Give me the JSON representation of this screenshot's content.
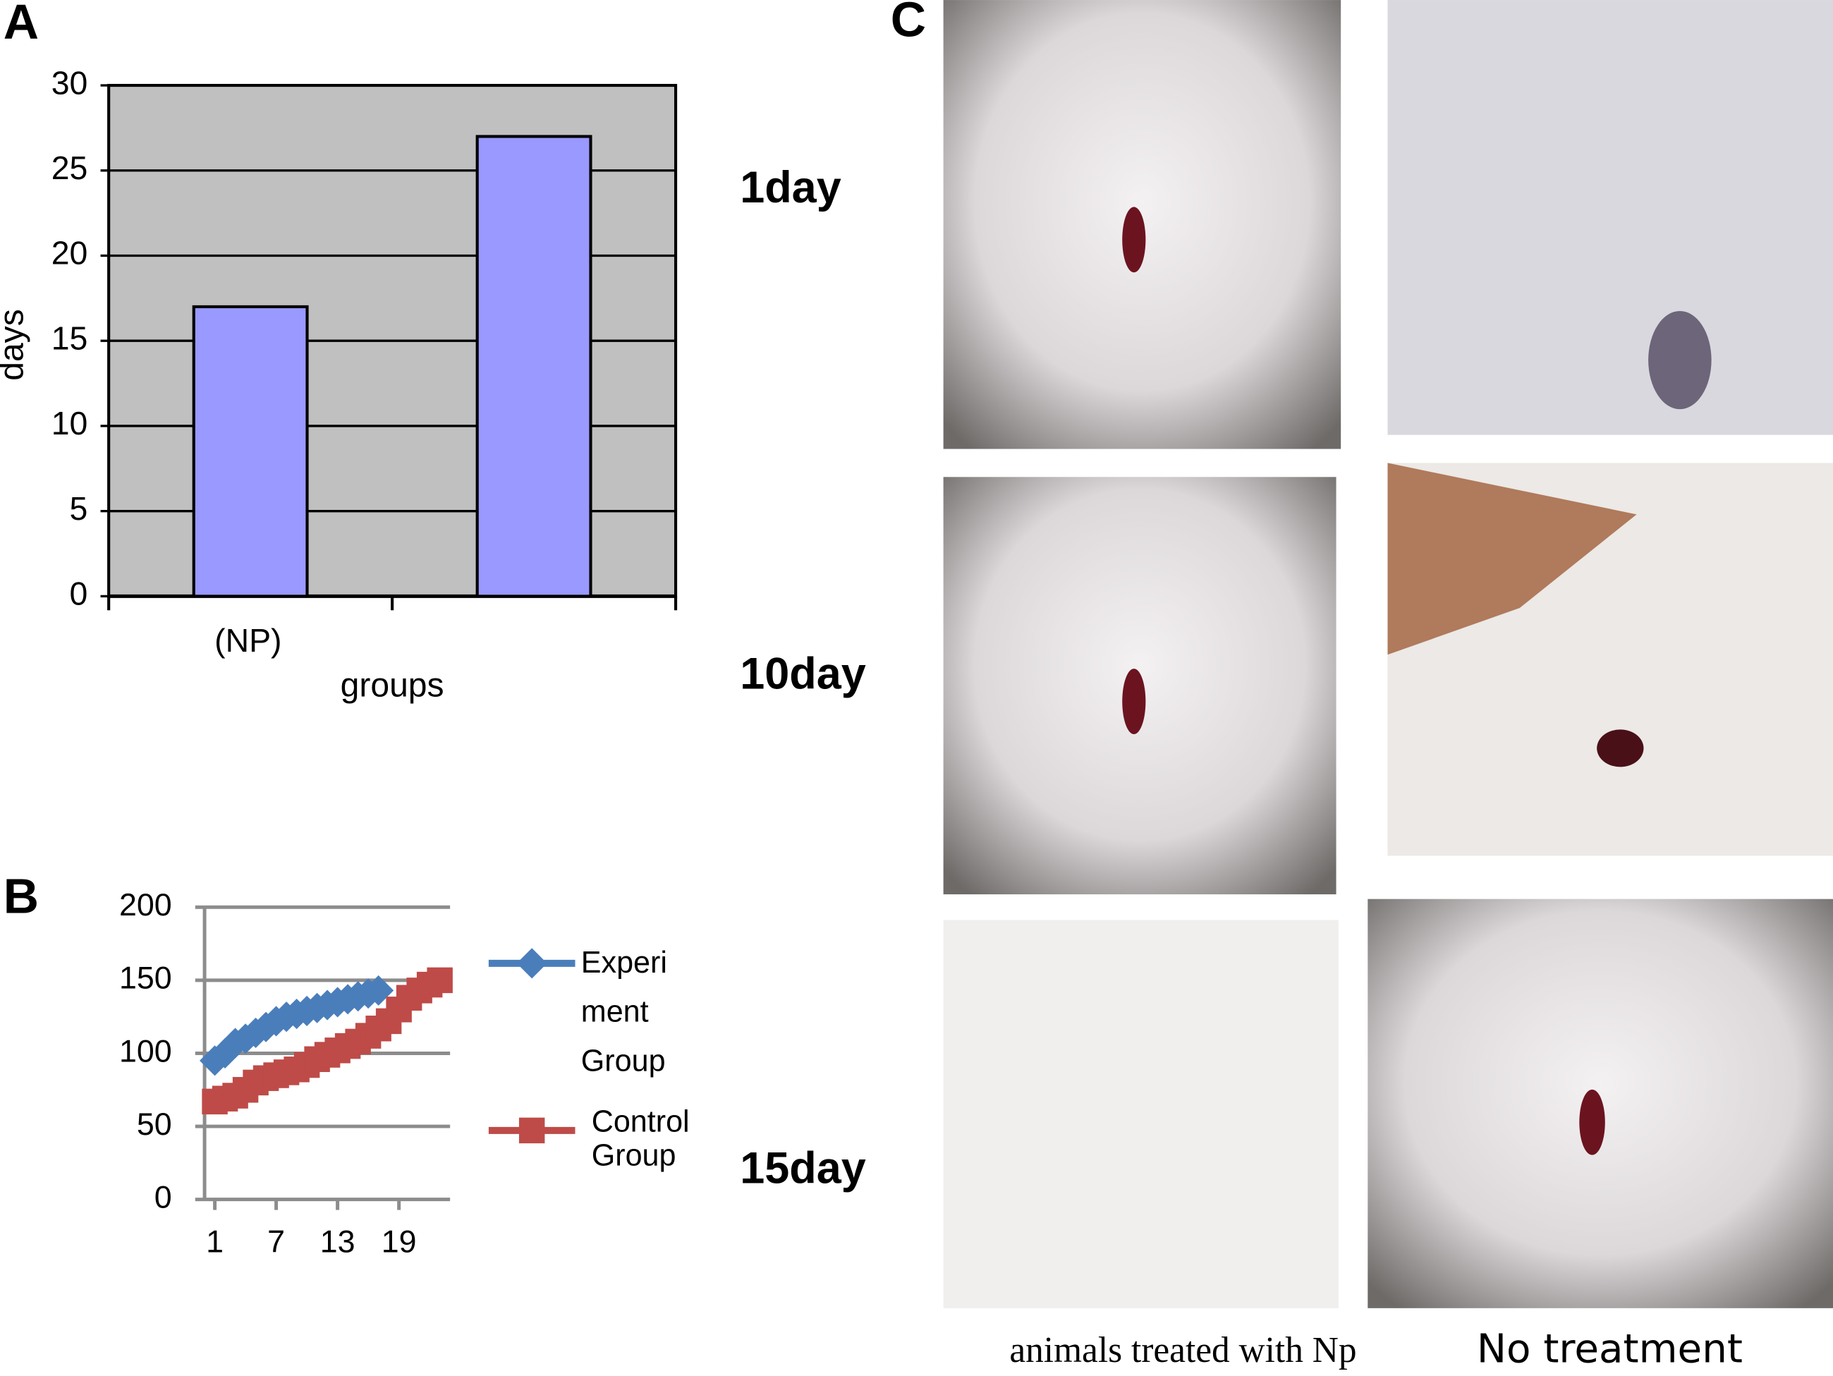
{
  "chart_data": [
    {
      "type": "bar",
      "categories": [
        "(NP)",
        null
      ],
      "values": [
        17,
        27
      ],
      "color": "#9999ff",
      "x_label": "groups",
      "y_label": "days",
      "ylim": [
        0,
        30
      ],
      "yticks": [
        0,
        5,
        10,
        15,
        20,
        25,
        30
      ],
      "grid": true,
      "background": "#c0c0c0"
    },
    {
      "type": "line",
      "x": [
        1,
        2,
        3,
        4,
        5,
        6,
        7,
        8,
        9,
        10,
        11,
        12,
        13,
        14,
        15,
        16,
        17,
        18,
        19,
        20,
        21,
        22,
        23
      ],
      "xlim": [
        0,
        24
      ],
      "xticks": [
        1,
        7,
        13,
        19
      ],
      "ylim": [
        0,
        200
      ],
      "yticks": [
        0,
        50,
        100,
        150,
        200
      ],
      "grid": true,
      "legend": "right",
      "series": [
        {
          "name": "Experiment Group",
          "color": "#4a7ebb",
          "marker": "diamond",
          "values": [
            95,
            100,
            107,
            110,
            114,
            118,
            122,
            125,
            127,
            129,
            131,
            133,
            135,
            137,
            139,
            141,
            143,
            null,
            null,
            null,
            null,
            null,
            null
          ]
        },
        {
          "name": "Control Group",
          "color": "#be4b48",
          "marker": "square",
          "values": [
            67,
            69,
            71,
            75,
            80,
            83,
            85,
            87,
            89,
            92,
            96,
            99,
            102,
            105,
            108,
            112,
            117,
            122,
            130,
            138,
            143,
            147,
            150
          ]
        }
      ]
    }
  ],
  "figure": {
    "panel_labels": [
      "A",
      "B",
      "C"
    ],
    "row_labels": [
      "1day",
      "10day",
      "15day"
    ],
    "column_captions": [
      "animals treated with Np",
      "No treatment"
    ]
  }
}
